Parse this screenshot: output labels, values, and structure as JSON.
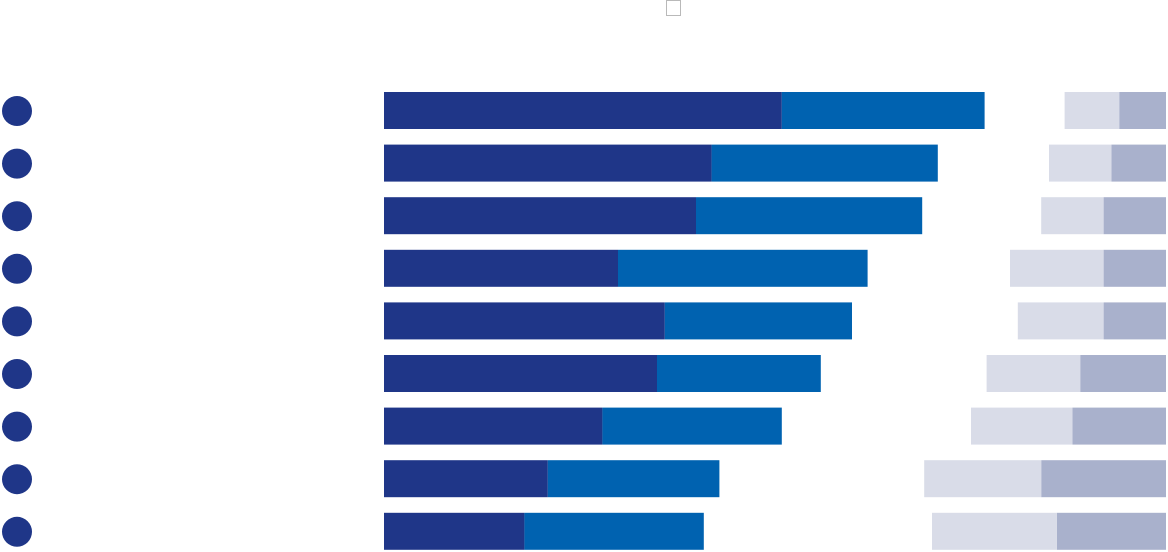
{
  "chart_data": {
    "type": "bar",
    "stacked": true,
    "orientation": "horizontal",
    "title": "",
    "xlabel": "",
    "ylabel": "",
    "legend": "none",
    "grid": false,
    "categories": [
      "",
      "",
      "",
      "",
      "",
      "",
      "",
      "",
      ""
    ],
    "row_marker_color": "#1f3688",
    "panels": [
      {
        "name": "",
        "align": "left",
        "xlim": [
          0,
          100
        ],
        "series": [
          {
            "name": "",
            "color": "#1f3688",
            "values": [
              51,
              42,
              40,
              30,
              36,
              35,
              28,
              21,
              18
            ]
          },
          {
            "name": "",
            "color": "#0062b0",
            "values": [
              26,
              29,
              29,
              32,
              24,
              21,
              23,
              22,
              23
            ]
          }
        ]
      },
      {
        "name": "",
        "align": "right",
        "xlim": [
          0,
          100
        ],
        "series": [
          {
            "name": "",
            "color": "#a9b1cc",
            "values": [
              6,
              7,
              8,
              8,
              8,
              11,
              12,
              16,
              14
            ]
          },
          {
            "name": "",
            "color": "#d9dce8",
            "values": [
              7,
              8,
              8,
              12,
              11,
              12,
              13,
              15,
              16
            ]
          }
        ]
      }
    ]
  }
}
